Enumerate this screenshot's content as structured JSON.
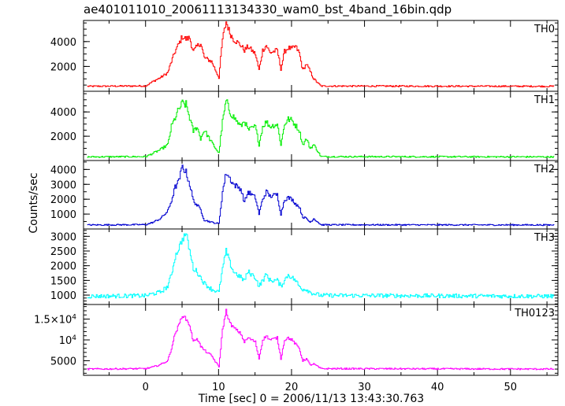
{
  "chart_data": {
    "type": "line",
    "title": "ae401011010_20061113134330_wam0_bst_4band_16bin.qdp",
    "xlabel": "Time [sec] 0 = 2006/11/13 13:43:30.763",
    "ylabel": "Counts/sec",
    "xlim": [
      -8.5,
      56.5
    ],
    "x_ticks": [
      0,
      10,
      20,
      30,
      40,
      50
    ],
    "x_tick_labels": [
      "0",
      "10",
      "20",
      "30",
      "40",
      "50"
    ],
    "panels": [
      {
        "name": "TH0",
        "color": "#ff0000",
        "ylim": [
          0,
          5700
        ],
        "y_ticks": [
          2000,
          4000
        ],
        "y_tick_labels": [
          "2000",
          "4000"
        ],
        "baseline": 400,
        "noise": 60,
        "points": [
          [
            -8,
            400
          ],
          [
            0,
            430
          ],
          [
            1,
            800
          ],
          [
            2,
            1100
          ],
          [
            3,
            1500
          ],
          [
            3.5,
            2400
          ],
          [
            4,
            3200
          ],
          [
            4.5,
            3800
          ],
          [
            5,
            4400
          ],
          [
            5.5,
            4200
          ],
          [
            6,
            4300
          ],
          [
            6.5,
            3200
          ],
          [
            7,
            3600
          ],
          [
            7.5,
            3900
          ],
          [
            8,
            2700
          ],
          [
            9,
            2400
          ],
          [
            10,
            1100
          ],
          [
            10.5,
            4200
          ],
          [
            11,
            5600
          ],
          [
            11.5,
            4700
          ],
          [
            12,
            4200
          ],
          [
            13,
            3700
          ],
          [
            13.5,
            3300
          ],
          [
            14,
            3600
          ],
          [
            15,
            3000
          ],
          [
            15.5,
            1700
          ],
          [
            16,
            3300
          ],
          [
            16.5,
            3700
          ],
          [
            17,
            3100
          ],
          [
            18,
            3300
          ],
          [
            18.5,
            1800
          ],
          [
            19,
            3200
          ],
          [
            19.5,
            3500
          ],
          [
            20,
            3400
          ],
          [
            20.5,
            3600
          ],
          [
            21,
            3100
          ],
          [
            21.5,
            1700
          ],
          [
            22,
            2200
          ],
          [
            22.5,
            1600
          ],
          [
            23,
            1000
          ],
          [
            24,
            420
          ],
          [
            56,
            400
          ]
        ]
      },
      {
        "name": "TH1",
        "color": "#00ee00",
        "ylim": [
          0,
          5700
        ],
        "y_ticks": [
          2000,
          4000
        ],
        "y_tick_labels": [
          "2000",
          "4000"
        ],
        "baseline": 300,
        "noise": 60,
        "points": [
          [
            -8,
            300
          ],
          [
            0,
            320
          ],
          [
            1,
            600
          ],
          [
            2,
            900
          ],
          [
            3,
            1300
          ],
          [
            3.5,
            2800
          ],
          [
            4,
            3500
          ],
          [
            4.5,
            4200
          ],
          [
            5,
            4700
          ],
          [
            5.5,
            4600
          ],
          [
            6,
            3500
          ],
          [
            6.5,
            2400
          ],
          [
            7,
            2800
          ],
          [
            7.5,
            1800
          ],
          [
            8,
            2500
          ],
          [
            9,
            1500
          ],
          [
            10,
            600
          ],
          [
            10.5,
            3200
          ],
          [
            11,
            4900
          ],
          [
            11.5,
            4000
          ],
          [
            12,
            3600
          ],
          [
            13,
            2800
          ],
          [
            13.5,
            3300
          ],
          [
            14,
            2500
          ],
          [
            15,
            2800
          ],
          [
            15.5,
            1300
          ],
          [
            16,
            2800
          ],
          [
            16.5,
            3200
          ],
          [
            17,
            2800
          ],
          [
            18,
            3000
          ],
          [
            18.5,
            1300
          ],
          [
            19,
            3000
          ],
          [
            19.5,
            3400
          ],
          [
            20,
            3300
          ],
          [
            20.5,
            2900
          ],
          [
            21,
            2500
          ],
          [
            21.5,
            1300
          ],
          [
            22,
            1800
          ],
          [
            22.5,
            1000
          ],
          [
            23,
            1300
          ],
          [
            24,
            320
          ],
          [
            56,
            300
          ]
        ]
      },
      {
        "name": "TH2",
        "color": "#0000d0",
        "ylim": [
          0,
          4600
        ],
        "y_ticks": [
          1000,
          2000,
          3000,
          4000
        ],
        "y_tick_labels": [
          "1000",
          "2000",
          "3000",
          "4000"
        ],
        "baseline": 270,
        "noise": 45,
        "points": [
          [
            -8,
            270
          ],
          [
            0,
            290
          ],
          [
            1,
            450
          ],
          [
            2,
            700
          ],
          [
            3,
            1200
          ],
          [
            3.5,
            1900
          ],
          [
            4,
            2800
          ],
          [
            4.5,
            3200
          ],
          [
            5,
            4200
          ],
          [
            5.5,
            3800
          ],
          [
            6,
            3000
          ],
          [
            6.5,
            1900
          ],
          [
            7,
            1600
          ],
          [
            7.5,
            1300
          ],
          [
            8,
            600
          ],
          [
            9,
            450
          ],
          [
            10,
            350
          ],
          [
            10.5,
            2500
          ],
          [
            11,
            3800
          ],
          [
            11.5,
            3400
          ],
          [
            12,
            3000
          ],
          [
            13,
            2700
          ],
          [
            13.5,
            1800
          ],
          [
            14,
            2500
          ],
          [
            15,
            2100
          ],
          [
            15.5,
            1000
          ],
          [
            16,
            2000
          ],
          [
            16.5,
            2500
          ],
          [
            17,
            2200
          ],
          [
            18,
            2300
          ],
          [
            18.5,
            1000
          ],
          [
            19,
            2000
          ],
          [
            19.5,
            2100
          ],
          [
            20,
            2000
          ],
          [
            20.5,
            1700
          ],
          [
            21,
            1500
          ],
          [
            21.5,
            800
          ],
          [
            22,
            700
          ],
          [
            22.5,
            450
          ],
          [
            23,
            700
          ],
          [
            24,
            280
          ],
          [
            56,
            270
          ]
        ]
      },
      {
        "name": "TH3",
        "color": "#00ffff",
        "ylim": [
          680,
          3250
        ],
        "y_ticks": [
          1000,
          1500,
          2000,
          2500,
          3000
        ],
        "y_tick_labels": [
          "1000",
          "1500",
          "2000",
          "2500",
          "3000"
        ],
        "baseline": 960,
        "noise": 70,
        "points": [
          [
            -8,
            960
          ],
          [
            0,
            980
          ],
          [
            1,
            1050
          ],
          [
            2,
            1100
          ],
          [
            3,
            1300
          ],
          [
            3.5,
            1700
          ],
          [
            4,
            2300
          ],
          [
            4.5,
            2600
          ],
          [
            5,
            2900
          ],
          [
            5.5,
            3100
          ],
          [
            6,
            2500
          ],
          [
            6.5,
            1900
          ],
          [
            7,
            1800
          ],
          [
            7.5,
            1600
          ],
          [
            8,
            1400
          ],
          [
            9,
            1200
          ],
          [
            10,
            1100
          ],
          [
            10.5,
            1900
          ],
          [
            11,
            2500
          ],
          [
            11.5,
            2100
          ],
          [
            12,
            1800
          ],
          [
            13,
            1600
          ],
          [
            13.5,
            1500
          ],
          [
            14,
            1800
          ],
          [
            15,
            1600
          ],
          [
            15.5,
            1300
          ],
          [
            16,
            1500
          ],
          [
            16.5,
            1700
          ],
          [
            17,
            1500
          ],
          [
            18,
            1500
          ],
          [
            18.5,
            1300
          ],
          [
            19,
            1500
          ],
          [
            19.5,
            1700
          ],
          [
            20,
            1600
          ],
          [
            20.5,
            1500
          ],
          [
            21,
            1300
          ],
          [
            21.5,
            1200
          ],
          [
            22,
            1200
          ],
          [
            22.5,
            1100
          ],
          [
            23,
            1050
          ],
          [
            24,
            990
          ],
          [
            56,
            960
          ]
        ]
      },
      {
        "name": "TH0123",
        "color": "#ff00ff",
        "ylim": [
          1500,
          18500
        ],
        "y_ticks": [
          5000,
          10000,
          15000
        ],
        "y_tick_labels": [
          "5000",
          "10^4",
          "1.5×10^4"
        ],
        "baseline": 3000,
        "noise": 180,
        "points": [
          [
            -8,
            3000
          ],
          [
            0,
            3100
          ],
          [
            1,
            3500
          ],
          [
            2,
            4100
          ],
          [
            3,
            5000
          ],
          [
            3.5,
            8000
          ],
          [
            4,
            11500
          ],
          [
            4.5,
            13500
          ],
          [
            5,
            16000
          ],
          [
            5.5,
            15000
          ],
          [
            6,
            13500
          ],
          [
            6.5,
            9500
          ],
          [
            7,
            10500
          ],
          [
            7.5,
            8500
          ],
          [
            8,
            7500
          ],
          [
            9,
            6200
          ],
          [
            10,
            3500
          ],
          [
            10.5,
            12500
          ],
          [
            11,
            17000
          ],
          [
            11.5,
            14000
          ],
          [
            12,
            13000
          ],
          [
            13,
            11500
          ],
          [
            13.5,
            9500
          ],
          [
            14,
            10500
          ],
          [
            15,
            9500
          ],
          [
            15.5,
            5500
          ],
          [
            16,
            10000
          ],
          [
            16.5,
            11000
          ],
          [
            17,
            10000
          ],
          [
            18,
            10500
          ],
          [
            18.5,
            5500
          ],
          [
            19,
            10000
          ],
          [
            19.5,
            10500
          ],
          [
            20,
            10000
          ],
          [
            20.5,
            9000
          ],
          [
            21,
            8000
          ],
          [
            21.5,
            5000
          ],
          [
            22,
            5500
          ],
          [
            22.5,
            4000
          ],
          [
            23,
            4200
          ],
          [
            24,
            3100
          ],
          [
            56,
            3000
          ]
        ]
      }
    ]
  }
}
